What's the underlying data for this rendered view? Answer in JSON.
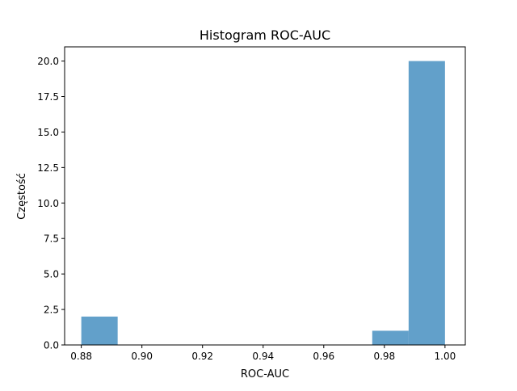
{
  "chart_data": {
    "type": "bar",
    "subtype": "histogram",
    "title": "Histogram ROC-AUC",
    "xlabel": "ROC-AUC",
    "ylabel": "Częstość",
    "xlim": [
      0.8745,
      1.0067
    ],
    "ylim": [
      0,
      21
    ],
    "x_ticks": [
      0.88,
      0.9,
      0.92,
      0.94,
      0.96,
      0.98,
      1.0
    ],
    "x_tick_labels": [
      "0.88",
      "0.90",
      "0.92",
      "0.94",
      "0.96",
      "0.98",
      "1.00"
    ],
    "y_ticks": [
      0,
      2.5,
      5,
      7.5,
      10,
      12.5,
      15,
      17.5,
      20
    ],
    "y_tick_labels": [
      "0.0",
      "2.5",
      "5.0",
      "7.5",
      "10.0",
      "12.5",
      "15.0",
      "17.5",
      "20.0"
    ],
    "bins": [
      {
        "x0": 0.88,
        "x1": 0.892,
        "count": 2
      },
      {
        "x0": 0.892,
        "x1": 0.904,
        "count": 0
      },
      {
        "x0": 0.904,
        "x1": 0.916,
        "count": 0
      },
      {
        "x0": 0.916,
        "x1": 0.928,
        "count": 0
      },
      {
        "x0": 0.928,
        "x1": 0.94,
        "count": 0
      },
      {
        "x0": 0.94,
        "x1": 0.952,
        "count": 0
      },
      {
        "x0": 0.952,
        "x1": 0.964,
        "count": 0
      },
      {
        "x0": 0.964,
        "x1": 0.976,
        "count": 0
      },
      {
        "x0": 0.976,
        "x1": 0.988,
        "count": 1
      },
      {
        "x0": 0.988,
        "x1": 1.0,
        "count": 20
      }
    ],
    "bar_color": "#1f77b4",
    "bar_opacity": 0.7,
    "grid": false,
    "legend": "none"
  }
}
